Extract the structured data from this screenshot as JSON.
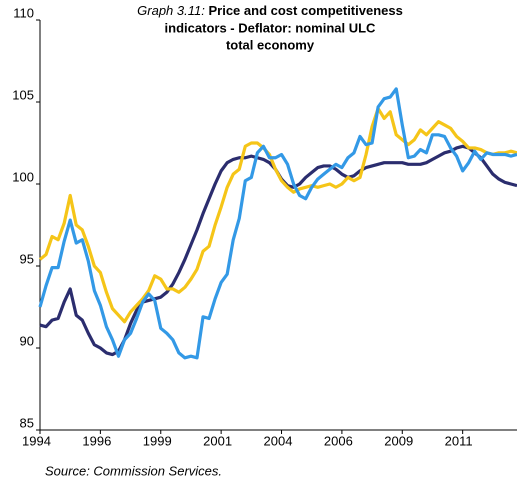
{
  "chart_data": {
    "type": "line",
    "title_label": "Graph 3.11:",
    "title_lines": [
      "Price and cost competitiveness",
      "indicators - Deflator: nominal ULC",
      "total economy"
    ],
    "source": "Source: Commission Services.",
    "categories": [
      "1994",
      null,
      null,
      null,
      null,
      null,
      null,
      null,
      null,
      null,
      "1996",
      null,
      null,
      null,
      null,
      null,
      null,
      null,
      null,
      null,
      "1999",
      null,
      null,
      null,
      null,
      null,
      null,
      null,
      null,
      null,
      "2001",
      null,
      null,
      null,
      null,
      null,
      null,
      null,
      null,
      null,
      "2004",
      null,
      null,
      null,
      null,
      null,
      null,
      null,
      null,
      null,
      "2006",
      null,
      null,
      null,
      null,
      null,
      null,
      null,
      null,
      null,
      "2009",
      null,
      null,
      null,
      null,
      null,
      null,
      null,
      null,
      null,
      "2011",
      null,
      null,
      null,
      null,
      null,
      null,
      null,
      null,
      null
    ],
    "series": [
      {
        "color": "#2b2d6e",
        "values": [
          91.4,
          91.3,
          91.7,
          91.8,
          92.8,
          93.6,
          92.0,
          91.7,
          90.9,
          90.2,
          90.0,
          89.7,
          89.6,
          89.8,
          90.5,
          91.5,
          92.3,
          92.8,
          92.9,
          93.0,
          93.1,
          93.4,
          93.9,
          94.6,
          95.4,
          96.3,
          97.2,
          98.2,
          99.1,
          100.0,
          100.8,
          101.3,
          101.5,
          101.6,
          101.6,
          101.7,
          101.6,
          101.5,
          101.3,
          100.9,
          100.3,
          99.9,
          99.8,
          100.0,
          100.4,
          100.7,
          101.0,
          101.1,
          101.1,
          100.9,
          100.6,
          100.4,
          100.5,
          100.8,
          101.0,
          101.1,
          101.2,
          101.3,
          101.3,
          101.3,
          101.3,
          101.2,
          101.2,
          101.2,
          101.3,
          101.5,
          101.7,
          101.9,
          102.0,
          102.2,
          102.3,
          102.2,
          101.9,
          101.6,
          101.1,
          100.6,
          100.3,
          100.1,
          100.0,
          99.9
        ]
      },
      {
        "color": "#f5c518",
        "values": [
          95.4,
          95.7,
          96.8,
          96.6,
          97.6,
          99.3,
          97.5,
          97.2,
          96.2,
          95.0,
          94.6,
          93.4,
          92.4,
          92.0,
          91.6,
          92.2,
          92.6,
          93.0,
          93.5,
          94.4,
          94.2,
          93.6,
          93.6,
          93.4,
          93.7,
          94.2,
          94.8,
          95.9,
          96.2,
          97.5,
          98.6,
          99.8,
          100.6,
          100.9,
          102.3,
          102.5,
          102.5,
          102.2,
          101.8,
          100.9,
          100.2,
          99.8,
          99.5,
          99.7,
          99.8,
          99.9,
          99.8,
          99.9,
          100.0,
          99.8,
          100.0,
          100.4,
          100.2,
          100.4,
          101.8,
          103.5,
          104.6,
          104.0,
          104.4,
          103.0,
          102.7,
          102.4,
          102.7,
          103.3,
          103.0,
          103.4,
          103.8,
          103.6,
          103.4,
          102.9,
          102.6,
          102.2,
          102.2,
          102.1,
          101.9,
          101.8,
          101.9,
          101.9,
          102.0,
          101.9
        ]
      },
      {
        "color": "#3399e6",
        "values": [
          92.5,
          93.8,
          94.9,
          94.9,
          96.5,
          97.8,
          96.4,
          96.6,
          95.3,
          93.5,
          92.6,
          91.3,
          90.5,
          89.5,
          90.5,
          90.9,
          91.8,
          92.8,
          93.3,
          92.9,
          91.2,
          90.9,
          90.5,
          89.7,
          89.4,
          89.5,
          89.4,
          91.9,
          91.8,
          93.0,
          94.0,
          94.5,
          96.6,
          97.9,
          100.2,
          100.4,
          101.9,
          102.3,
          101.6,
          101.6,
          101.8,
          101.2,
          100.0,
          99.3,
          99.1,
          99.8,
          100.3,
          100.6,
          100.9,
          101.2,
          101.0,
          101.6,
          101.9,
          102.9,
          102.4,
          102.5,
          104.7,
          105.2,
          105.3,
          105.8,
          103.6,
          101.6,
          101.7,
          102.1,
          101.9,
          103.0,
          103.0,
          102.9,
          102.2,
          101.7,
          100.8,
          101.3,
          102.0,
          101.5,
          101.9,
          101.8,
          101.8,
          101.8,
          101.7,
          101.8
        ]
      }
    ],
    "ylim": [
      85,
      110
    ],
    "yticks": [
      85,
      90,
      95,
      100,
      105,
      110
    ],
    "grid": false
  }
}
